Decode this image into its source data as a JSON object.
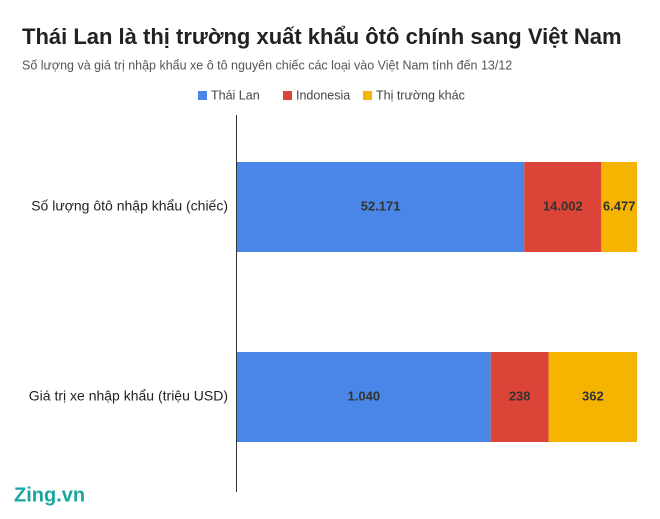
{
  "chart_data": {
    "type": "bar",
    "orientation": "horizontal",
    "stacked": "percent",
    "title": "Thái Lan là thị trường xuất khẩu ôtô chính sang Việt Nam",
    "subtitle": "Số lượng và giá trị nhập khẩu xe ô tô nguyên chiếc các loại vào Việt Nam tính đến 13/12",
    "categories": [
      "Số lượng ôtô nhập khẩu (chiếc)",
      "Giá trị xe nhập khẩu (triệu USD)"
    ],
    "series": [
      {
        "name": "Thái Lan",
        "color": "#4a86e8",
        "values": [
          52171,
          1040
        ],
        "value_labels": [
          "52.171",
          "1.040"
        ]
      },
      {
        "name": "Indonesia",
        "color": "#db4437",
        "values": [
          14002,
          238
        ],
        "value_labels": [
          "14.002",
          "238"
        ]
      },
      {
        "name": "Thị trường khác",
        "color": "#f4b400",
        "values": [
          6477,
          362
        ],
        "value_labels": [
          "6.477",
          "362"
        ]
      }
    ],
    "legend": "top",
    "logo": "Zing.vn"
  }
}
